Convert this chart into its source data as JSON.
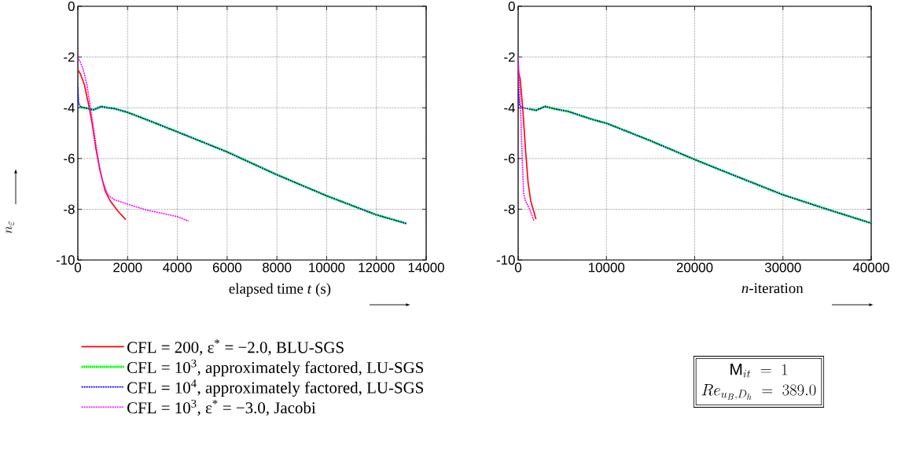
{
  "chart_data": [
    {
      "type": "line",
      "xlabel": "elapsed time *t* (s)",
      "ylabel": "n_{\\varepsilon}",
      "xlim": [
        0,
        14000
      ],
      "ylim": [
        -10,
        0
      ],
      "xticks": [
        0,
        2000,
        4000,
        6000,
        8000,
        10000,
        12000,
        14000
      ],
      "yticks": [
        -10,
        -8,
        -6,
        -4,
        -2,
        0
      ],
      "grid": true,
      "legend": "bottom",
      "series": [
        {
          "name": "CFL = 200, ε$^{*}$ = −2.0, BLU-SGS",
          "color": "#ff0000",
          "line_style": "solid",
          "x": [
            0,
            104,
            260,
            417,
            573,
            729,
            885,
            1094,
            1302,
            1615,
            1927
          ],
          "values": [
            -2.5,
            -2.67,
            -3.08,
            -3.8,
            -4.61,
            -5.63,
            -6.45,
            -7.27,
            -7.67,
            -8.08,
            -8.41
          ]
        },
        {
          "name": "CFL = 10$^{3}$, approximately factored, LU-SGS",
          "color": "#00ff00",
          "line_style": "dashed",
          "x": [
            104,
            365,
            625,
            781,
            938,
            1198,
            1458,
            2000,
            3000,
            4000,
            6000,
            8000,
            10000,
            12000,
            13200
          ],
          "values": [
            -3.97,
            -4.02,
            -4.08,
            -4.02,
            -3.95,
            -4.0,
            -4.03,
            -4.18,
            -4.56,
            -4.95,
            -5.74,
            -6.64,
            -7.47,
            -8.22,
            -8.56
          ]
        },
        {
          "name": "CFL = 10$^{4}$, approximately factored, LU-SGS",
          "color": "#0000ff",
          "line_style": "dotted",
          "x": [
            0,
            31,
            104,
            365,
            625,
            781,
            938,
            1198,
            1458,
            2000,
            3000,
            4000,
            6000,
            8000,
            10000,
            12000,
            13200
          ],
          "values": [
            -3.18,
            -3.8,
            -3.97,
            -4.02,
            -4.08,
            -4.02,
            -3.95,
            -4.0,
            -4.03,
            -4.18,
            -4.56,
            -4.95,
            -5.74,
            -6.64,
            -7.47,
            -8.22,
            -8.56
          ]
        },
        {
          "name": "CFL = 10$^{3}$, ε$^{*}$ = −3.0, Jacobi",
          "color": "#ff00ff",
          "line_style": "dotted",
          "x": [
            0,
            104,
            208,
            365,
            521,
            677,
            833,
            990,
            1198,
            1458,
            2000,
            2760,
            4000,
            4458
          ],
          "values": [
            -2.01,
            -2.21,
            -2.47,
            -3.08,
            -4.1,
            -5.12,
            -6.14,
            -6.86,
            -7.42,
            -7.62,
            -7.8,
            -8.03,
            -8.29,
            -8.47
          ]
        }
      ]
    },
    {
      "type": "line",
      "xlabel": "*n*-iteration",
      "xlim": [
        0,
        40000
      ],
      "ylim": [
        -10,
        0
      ],
      "xticks": [
        0,
        10000,
        20000,
        30000,
        40000
      ],
      "yticks": [
        -10,
        -8,
        -6,
        -4,
        -2,
        0
      ],
      "grid": true,
      "annotations": [
        "\\mathrm{M}_{it} \\;=\\; 1",
        "Re_{u_B,D_h} \\;=\\; 389.0"
      ],
      "series": [
        {
          "color": "#ff0000",
          "line_style": "solid",
          "x": [
            0,
            237,
            534,
            831,
            1128,
            1424,
            2018
          ],
          "values": [
            -2.52,
            -2.88,
            -4.1,
            -5.63,
            -6.96,
            -7.67,
            -8.39
          ]
        },
        {
          "color": "#00ff00",
          "line_style": "dashed",
          "x": [
            1276,
            2018,
            3056,
            4243,
            5727,
            8398,
            10000,
            15000,
            20000,
            25000,
            30000,
            35000,
            40000
          ],
          "values": [
            -4.05,
            -4.1,
            -3.95,
            -4.05,
            -4.15,
            -4.46,
            -4.61,
            -5.3,
            -6.04,
            -6.74,
            -7.43,
            -8.0,
            -8.55
          ]
        },
        {
          "color": "#0000ff",
          "line_style": "dotted",
          "x": [
            0,
            148,
            534,
            1276,
            2018,
            3056,
            4243,
            5727,
            8398,
            10000,
            15000,
            20000,
            25000,
            30000,
            35000,
            40000
          ],
          "values": [
            -3.29,
            -3.9,
            -4.0,
            -4.05,
            -4.1,
            -3.95,
            -4.05,
            -4.15,
            -4.46,
            -4.61,
            -5.3,
            -6.04,
            -6.74,
            -7.43,
            -8.0,
            -8.55
          ]
        },
        {
          "color": "#ff00ff",
          "line_style": "dotted",
          "x": [
            0,
            148,
            326,
            475,
            623,
            831,
            1276,
            1810
          ],
          "values": [
            -1.96,
            -3.08,
            -4.61,
            -6.14,
            -7.37,
            -7.67,
            -7.98,
            -8.47
          ]
        }
      ]
    }
  ]
}
